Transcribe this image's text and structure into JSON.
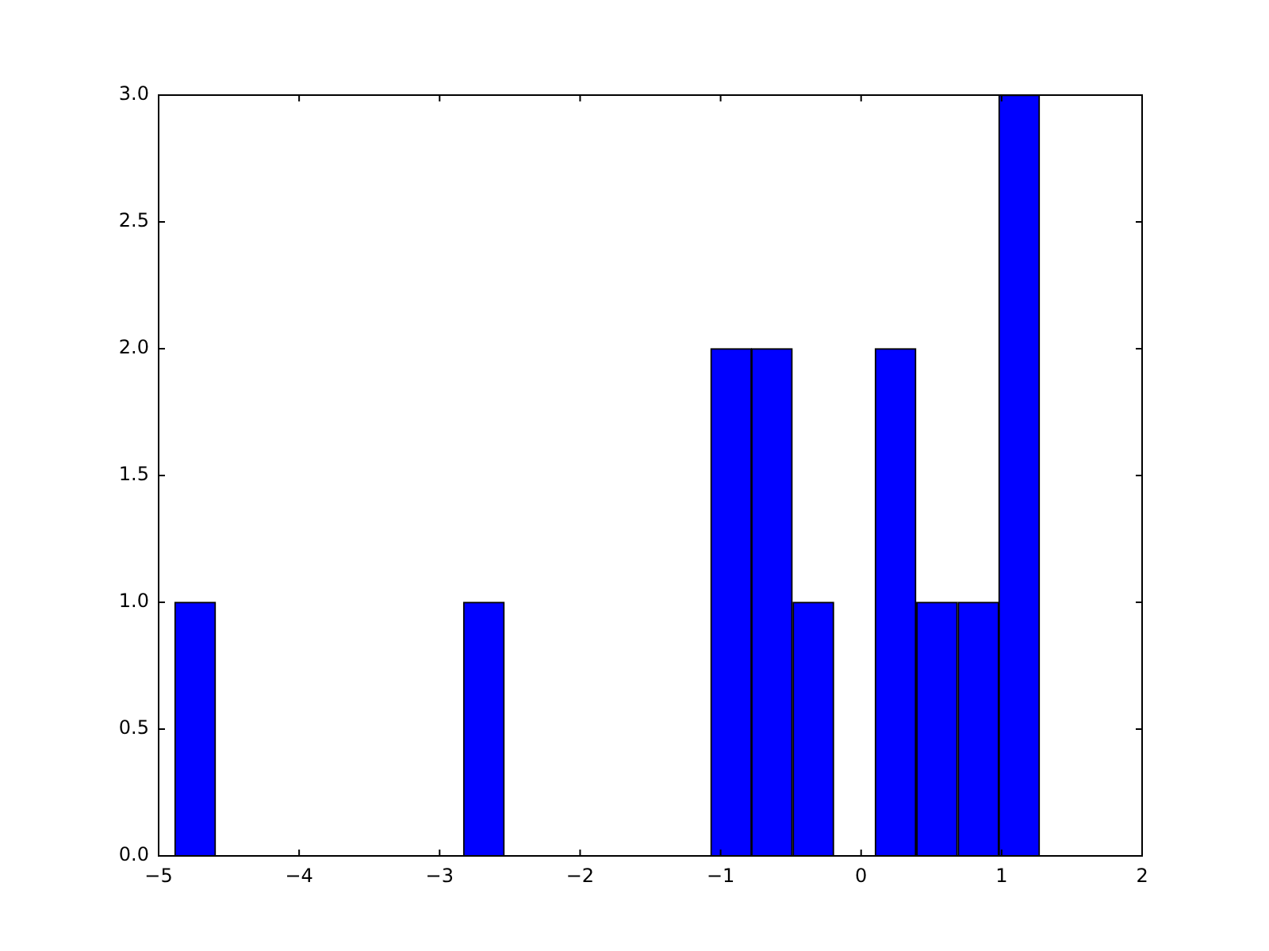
{
  "chart_data": {
    "type": "histogram",
    "bins": [
      -4.89,
      -4.59,
      -4.3,
      -4.01,
      -3.71,
      -3.42,
      -3.13,
      -2.83,
      -2.54,
      -2.25,
      -1.95,
      -1.66,
      -1.37,
      -1.07,
      -0.78,
      -0.49,
      -0.19,
      0.1,
      0.39,
      0.69,
      0.98,
      1.27
    ],
    "values": [
      1,
      0,
      0,
      0,
      0,
      0,
      0,
      1,
      0,
      0,
      0,
      0,
      0,
      2,
      2,
      1,
      0,
      2,
      1,
      1,
      3
    ],
    "color": "#0000ff",
    "xlim": [
      -5,
      2
    ],
    "xticks": [
      {
        "value": -5,
        "label": "−5"
      },
      {
        "value": -4,
        "label": "−4"
      },
      {
        "value": -3,
        "label": "−3"
      },
      {
        "value": -2,
        "label": "−2"
      },
      {
        "value": -1,
        "label": "−1"
      },
      0,
      1,
      2
    ],
    "ylim": [
      0,
      3
    ],
    "yticks": [
      {
        "value": 0,
        "label": "0.0"
      },
      {
        "value": 0.5,
        "label": "0.5"
      },
      {
        "value": 1,
        "label": "1.0"
      },
      {
        "value": 1.5,
        "label": "1.5"
      },
      {
        "value": 2,
        "label": "2.0"
      },
      {
        "value": 2.5,
        "label": "2.5"
      },
      {
        "value": 3,
        "label": "3.0"
      }
    ],
    "grid": false,
    "legend": false
  }
}
